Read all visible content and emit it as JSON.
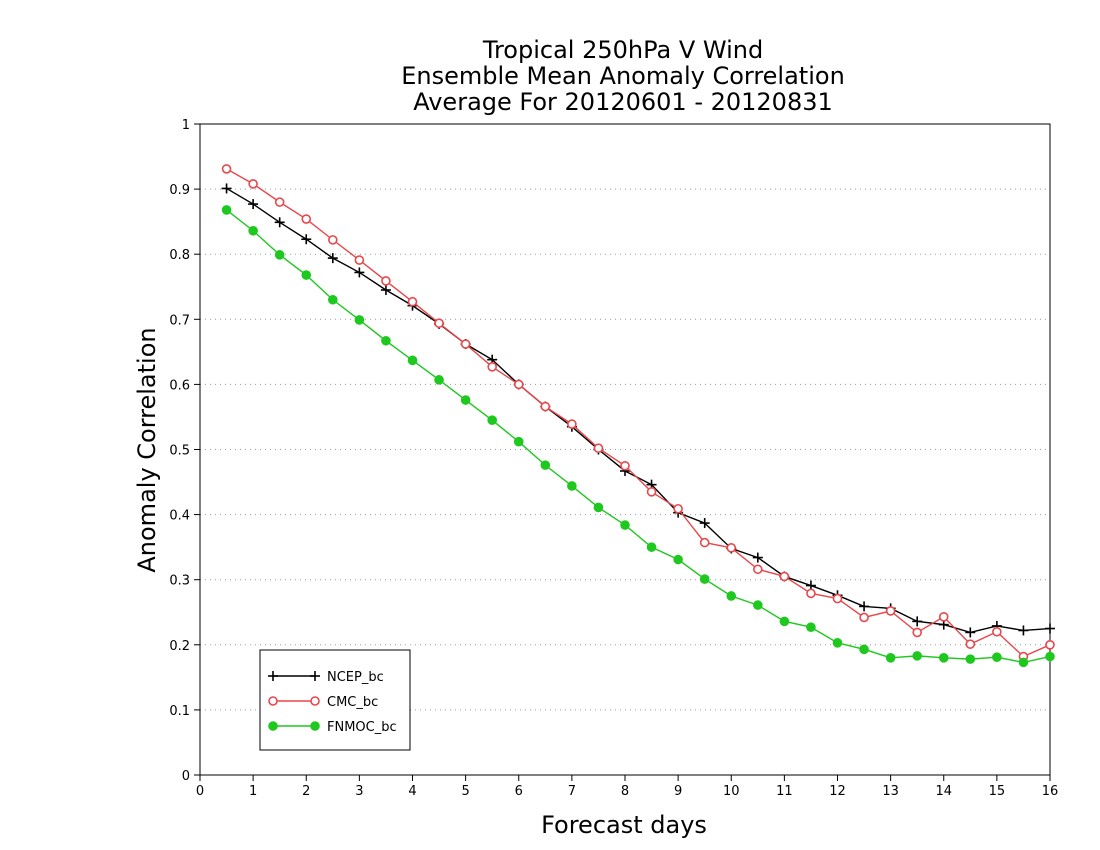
{
  "chart_data": {
    "type": "line",
    "title_lines": [
      "Tropical 250hPa V Wind",
      "Ensemble Mean Anomaly Correlation",
      "Average For 20120601 - 20120831"
    ],
    "xlabel": "Forecast days",
    "ylabel": "Anomaly Correlation",
    "xlim": [
      0,
      16
    ],
    "ylim": [
      0,
      1
    ],
    "x_ticks": [
      0,
      1,
      2,
      3,
      4,
      5,
      6,
      7,
      8,
      9,
      10,
      11,
      12,
      13,
      14,
      15,
      16
    ],
    "y_ticks": [
      0,
      0.1,
      0.2,
      0.3,
      0.4,
      0.5,
      0.6,
      0.7,
      0.8,
      0.9,
      1
    ],
    "x_tick_labels": [
      "0",
      "1",
      "2",
      "3",
      "4",
      "5",
      "6",
      "7",
      "8",
      "9",
      "10",
      "11",
      "12",
      "13",
      "14",
      "15",
      "16"
    ],
    "y_tick_labels": [
      "0",
      "0.1",
      "0.2",
      "0.3",
      "0.4",
      "0.5",
      "0.6",
      "0.7",
      "0.8",
      "0.9",
      "1"
    ],
    "grid": "horizontal dotted",
    "legend_position": "bottom-left",
    "x": [
      0.5,
      1,
      1.5,
      2,
      2.5,
      3,
      3.5,
      4,
      4.5,
      5,
      5.5,
      6,
      6.5,
      7,
      7.5,
      8,
      8.5,
      9,
      9.5,
      10,
      10.5,
      11,
      11.5,
      12,
      12.5,
      13,
      13.5,
      14,
      14.5,
      15,
      15.5,
      16
    ],
    "series": [
      {
        "name": "NCEP_bc",
        "color": "#000000",
        "marker": "plus",
        "values": [
          0.901,
          0.877,
          0.849,
          0.823,
          0.794,
          0.772,
          0.745,
          0.721,
          0.693,
          0.662,
          0.638,
          0.6,
          0.566,
          0.535,
          0.5,
          0.467,
          0.446,
          0.403,
          0.387,
          0.348,
          0.334,
          0.305,
          0.291,
          0.276,
          0.259,
          0.256,
          0.236,
          0.231,
          0.219,
          0.229,
          0.222,
          0.225
        ]
      },
      {
        "name": "CMC_bc",
        "color": "#e8474c",
        "marker": "open-circle",
        "values": [
          0.931,
          0.908,
          0.88,
          0.854,
          0.822,
          0.791,
          0.759,
          0.727,
          0.694,
          0.662,
          0.627,
          0.6,
          0.566,
          0.539,
          0.502,
          0.475,
          0.435,
          0.409,
          0.357,
          0.349,
          0.316,
          0.305,
          0.279,
          0.271,
          0.242,
          0.252,
          0.219,
          0.243,
          0.201,
          0.22,
          0.182,
          0.2
        ]
      },
      {
        "name": "FNMOC_bc",
        "color": "#1ec81e",
        "marker": "filled-circle",
        "values": [
          0.868,
          0.836,
          0.799,
          0.768,
          0.73,
          0.699,
          0.667,
          0.637,
          0.607,
          0.576,
          0.545,
          0.512,
          0.476,
          0.444,
          0.411,
          0.384,
          0.35,
          0.331,
          0.301,
          0.275,
          0.261,
          0.236,
          0.227,
          0.203,
          0.193,
          0.18,
          0.183,
          0.18,
          0.178,
          0.181,
          0.173,
          0.182
        ]
      }
    ]
  }
}
